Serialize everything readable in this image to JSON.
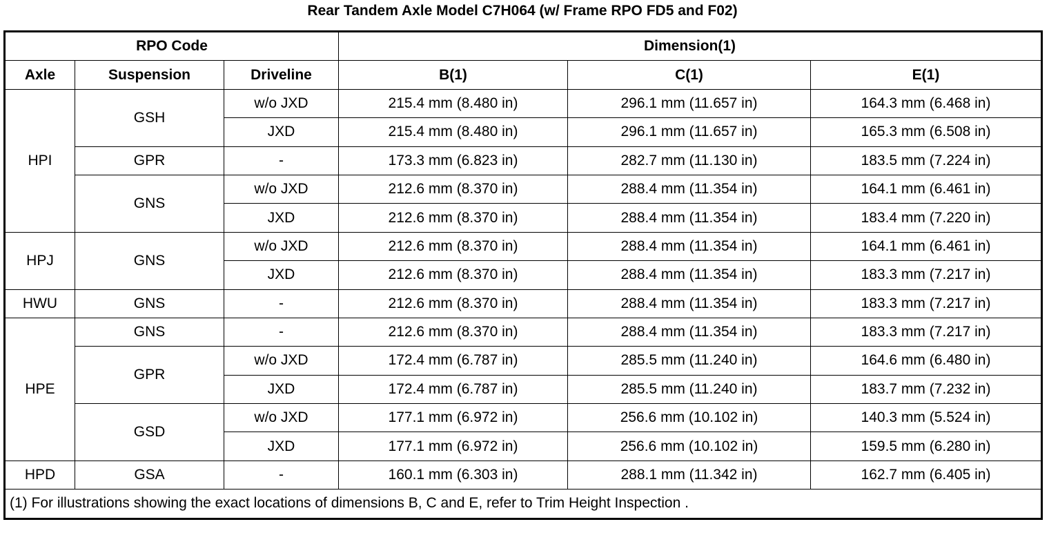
{
  "title": "Rear Tandem Axle Model C7H064 (w/ Frame RPO FD5 and F02)",
  "header": {
    "rpo_code": "RPO Code",
    "dimension": "Dimension(1)",
    "columns": [
      "Axle",
      "Suspension",
      "Driveline",
      "B(1)",
      "C(1)",
      "E(1)"
    ]
  },
  "axles": [
    {
      "axle": "HPI",
      "suspensions": [
        {
          "suspension": "GSH",
          "drivelines": [
            {
              "driveline": "w/o JXD",
              "b": "215.4 mm (8.480 in)",
              "c": "296.1 mm (11.657 in)",
              "e": "164.3 mm (6.468 in)"
            },
            {
              "driveline": "JXD",
              "b": "215.4 mm (8.480 in)",
              "c": "296.1 mm (11.657 in)",
              "e": "165.3 mm (6.508 in)"
            }
          ]
        },
        {
          "suspension": "GPR",
          "drivelines": [
            {
              "driveline": "-",
              "b": "173.3 mm (6.823 in)",
              "c": "282.7 mm (11.130 in)",
              "e": "183.5 mm (7.224 in)"
            }
          ]
        },
        {
          "suspension": "GNS",
          "drivelines": [
            {
              "driveline": "w/o JXD",
              "b": "212.6 mm (8.370 in)",
              "c": "288.4 mm (11.354 in)",
              "e": "164.1 mm (6.461 in)"
            },
            {
              "driveline": "JXD",
              "b": "212.6 mm (8.370 in)",
              "c": "288.4 mm (11.354 in)",
              "e": "183.4 mm (7.220 in)"
            }
          ]
        }
      ]
    },
    {
      "axle": "HPJ",
      "suspensions": [
        {
          "suspension": "GNS",
          "drivelines": [
            {
              "driveline": "w/o JXD",
              "b": "212.6 mm (8.370 in)",
              "c": "288.4 mm (11.354 in)",
              "e": "164.1 mm (6.461 in)"
            },
            {
              "driveline": "JXD",
              "b": "212.6 mm (8.370 in)",
              "c": "288.4 mm (11.354 in)",
              "e": "183.3 mm (7.217 in)"
            }
          ]
        }
      ]
    },
    {
      "axle": "HWU",
      "suspensions": [
        {
          "suspension": "GNS",
          "drivelines": [
            {
              "driveline": "-",
              "b": "212.6 mm (8.370 in)",
              "c": "288.4 mm (11.354 in)",
              "e": "183.3 mm (7.217 in)"
            }
          ]
        }
      ]
    },
    {
      "axle": "HPE",
      "suspensions": [
        {
          "suspension": "GNS",
          "drivelines": [
            {
              "driveline": "-",
              "b": "212.6 mm (8.370 in)",
              "c": "288.4 mm (11.354 in)",
              "e": "183.3 mm (7.217 in)"
            }
          ]
        },
        {
          "suspension": "GPR",
          "drivelines": [
            {
              "driveline": "w/o JXD",
              "b": "172.4 mm (6.787 in)",
              "c": "285.5 mm (11.240 in)",
              "e": "164.6 mm (6.480 in)"
            },
            {
              "driveline": "JXD",
              "b": "172.4 mm (6.787 in)",
              "c": "285.5 mm (11.240 in)",
              "e": "183.7 mm (7.232 in)"
            }
          ]
        },
        {
          "suspension": "GSD",
          "drivelines": [
            {
              "driveline": "w/o JXD",
              "b": "177.1 mm (6.972 in)",
              "c": "256.6 mm (10.102 in)",
              "e": "140.3 mm (5.524 in)"
            },
            {
              "driveline": "JXD",
              "b": "177.1 mm (6.972 in)",
              "c": "256.6 mm (10.102 in)",
              "e": "159.5 mm (6.280 in)"
            }
          ]
        }
      ]
    },
    {
      "axle": "HPD",
      "suspensions": [
        {
          "suspension": "GSA",
          "drivelines": [
            {
              "driveline": "-",
              "b": "160.1 mm (6.303 in)",
              "c": "288.1 mm (11.342 in)",
              "e": "162.7 mm (6.405 in)"
            }
          ]
        }
      ]
    }
  ],
  "footnote": "(1) For illustrations showing the exact locations of dimensions B, C and E, refer to Trim Height Inspection ."
}
